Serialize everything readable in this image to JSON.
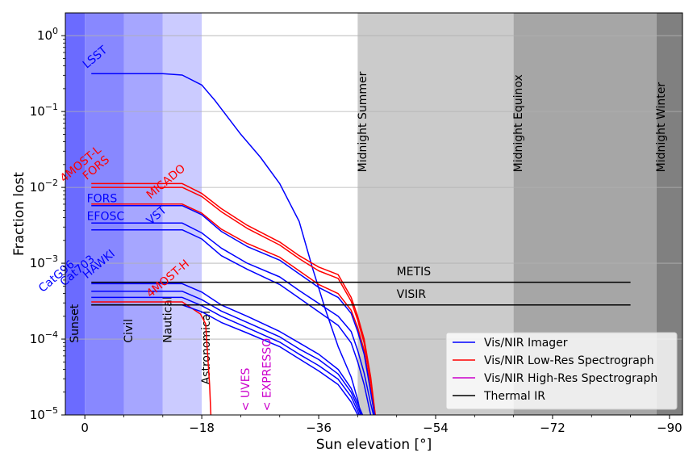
{
  "chart_data": {
    "type": "line",
    "title": "",
    "xlabel": "Sun elevation [°]",
    "ylabel": "Fraction lost",
    "x_ticks": [
      {
        "value": 0,
        "label": "0"
      },
      {
        "value": -18,
        "label": "−18"
      },
      {
        "value": -36,
        "label": "−36"
      },
      {
        "value": -54,
        "label": "−54"
      },
      {
        "value": -72,
        "label": "−72"
      },
      {
        "value": -90,
        "label": "−90"
      }
    ],
    "y_ticks": [
      {
        "exp": 0,
        "base": "10",
        "sup": "0"
      },
      {
        "exp": -1,
        "base": "10",
        "sup": "−1"
      },
      {
        "exp": -2,
        "base": "10",
        "sup": "−2"
      },
      {
        "exp": -3,
        "base": "10",
        "sup": "−3"
      },
      {
        "exp": -4,
        "base": "10",
        "sup": "−4"
      },
      {
        "exp": -5,
        "base": "10",
        "sup": "−5"
      }
    ],
    "xlim": [
      3,
      -92
    ],
    "ylim_log10": [
      -5,
      0.3
    ],
    "grid": "horizontal",
    "bands": [
      {
        "name": "sunset-band",
        "x0": 3,
        "x1": 0,
        "color": "#6b6bff"
      },
      {
        "name": "civil-band",
        "x0": 0,
        "x1": -6,
        "color": "#8888ff"
      },
      {
        "name": "nautical-band",
        "x0": -6,
        "x1": -12,
        "color": "#a6a6ff"
      },
      {
        "name": "astronomical-band",
        "x0": -12,
        "x1": -18,
        "color": "#cbcbff"
      },
      {
        "name": "midnight-summer-band",
        "x0": -42,
        "x1": -66,
        "color": "#cbcbcb"
      },
      {
        "name": "midnight-equinox-band",
        "x0": -66,
        "x1": -88,
        "color": "#a6a6a6"
      },
      {
        "name": "midnight-winter-band",
        "x0": -88,
        "x1": -92,
        "color": "#808080"
      }
    ],
    "band_labels": [
      {
        "text": "Sunset",
        "x": 1.0,
        "log": -4.05
      },
      {
        "text": "Civil",
        "x": -7.3,
        "log": -4.05
      },
      {
        "text": "Nautical",
        "x": -13.3,
        "log": -4.05
      },
      {
        "text": "Astronomical",
        "x": -19.2,
        "log": -4.6
      }
    ],
    "midnight_labels": [
      {
        "text": "Midnight Summer",
        "x": -43.3,
        "log": -1.8
      },
      {
        "text": "Midnight Equinox",
        "x": -67.3,
        "log": -1.8
      },
      {
        "text": "Midnight Winter",
        "x": -89.3,
        "log": -1.8
      }
    ],
    "series": [
      {
        "name": "LSST",
        "category": "imager",
        "color": "#0000ff",
        "x": [
          -1,
          -12,
          -15,
          -18,
          -20,
          -24,
          -27,
          -30,
          -33,
          -35,
          -37,
          -39,
          -41,
          -42,
          -43,
          -44
        ],
        "log": [
          -0.5,
          -0.5,
          -0.52,
          -0.65,
          -0.85,
          -1.3,
          -1.6,
          -1.95,
          -2.45,
          -3.05,
          -3.6,
          -4.1,
          -4.5,
          -4.8,
          -5.2,
          -5.7
        ]
      },
      {
        "name": "FORS",
        "category": "low-res",
        "color": "#ff0000",
        "x": [
          -1,
          -15,
          -18,
          -21,
          -25,
          -30,
          -33,
          -36,
          -39,
          -41,
          -42,
          -43,
          -44,
          -45
        ],
        "log": [
          -1.95,
          -1.95,
          -2.08,
          -2.28,
          -2.5,
          -2.72,
          -2.9,
          -3.05,
          -3.15,
          -3.45,
          -3.7,
          -4.0,
          -4.5,
          -5.2
        ]
      },
      {
        "name": "4MOST-L",
        "category": "low-res",
        "color": "#ff0000",
        "x": [
          -1,
          -15,
          -18,
          -21,
          -25,
          -30,
          -33,
          -36,
          -39,
          -41,
          -42,
          -43,
          -44,
          -45
        ],
        "log": [
          -2.0,
          -2.0,
          -2.12,
          -2.32,
          -2.54,
          -2.76,
          -2.94,
          -3.1,
          -3.2,
          -3.5,
          -3.75,
          -4.05,
          -4.55,
          -5.2
        ]
      },
      {
        "name": "MICADO",
        "category": "low-res",
        "color": "#ff0000",
        "x": [
          -1,
          -15,
          -18,
          -21,
          -25,
          -30,
          -33,
          -36,
          -39,
          -41,
          -42,
          -43,
          -44,
          -45
        ],
        "log": [
          -2.22,
          -2.22,
          -2.34,
          -2.55,
          -2.74,
          -2.92,
          -3.1,
          -3.28,
          -3.4,
          -3.62,
          -3.85,
          -4.15,
          -4.65,
          -5.2
        ]
      },
      {
        "name": "FORS",
        "category": "imager",
        "color": "#0000ff",
        "x": [
          -1,
          -15,
          -18,
          -21,
          -25,
          -30,
          -33,
          -36,
          -39,
          -41,
          -42,
          -43,
          -44,
          -45
        ],
        "log": [
          -2.24,
          -2.24,
          -2.36,
          -2.58,
          -2.78,
          -2.96,
          -3.14,
          -3.32,
          -3.45,
          -3.66,
          -3.9,
          -4.2,
          -4.7,
          -5.2
        ]
      },
      {
        "name": "EFOSC",
        "category": "imager",
        "color": "#0000ff",
        "x": [
          -1,
          -15,
          -18,
          -21,
          -25,
          -30,
          -33,
          -36,
          -39,
          -41,
          -42,
          -43,
          -44,
          -45
        ],
        "log": [
          -2.47,
          -2.47,
          -2.6,
          -2.8,
          -3.0,
          -3.18,
          -3.36,
          -3.53,
          -3.7,
          -3.9,
          -4.15,
          -4.45,
          -4.85,
          -5.2
        ]
      },
      {
        "name": "VST",
        "category": "imager",
        "color": "#0000ff",
        "x": [
          -1,
          -15,
          -18,
          -21,
          -25,
          -30,
          -33,
          -36,
          -39,
          -41,
          -42,
          -43,
          -44,
          -45
        ],
        "log": [
          -2.56,
          -2.56,
          -2.68,
          -2.9,
          -3.08,
          -3.28,
          -3.46,
          -3.64,
          -3.82,
          -4.05,
          -4.3,
          -4.6,
          -5.0,
          -5.2
        ]
      },
      {
        "name": "HAWKI",
        "category": "imager",
        "color": "#0000ff",
        "x": [
          -1,
          -15,
          -18,
          -21,
          -25,
          -30,
          -33,
          -36,
          -39,
          -41,
          -42,
          -43,
          -44
        ],
        "log": [
          -3.27,
          -3.27,
          -3.38,
          -3.55,
          -3.7,
          -3.9,
          -4.05,
          -4.2,
          -4.4,
          -4.65,
          -4.85,
          -5.05,
          -5.2
        ]
      },
      {
        "name": "Cat703",
        "category": "imager",
        "color": "#0000ff",
        "x": [
          -1,
          -15,
          -18,
          -21,
          -25,
          -30,
          -33,
          -36,
          -39,
          -41,
          -42,
          -43,
          -44
        ],
        "log": [
          -3.37,
          -3.37,
          -3.48,
          -3.63,
          -3.78,
          -3.97,
          -4.13,
          -4.27,
          -4.46,
          -4.7,
          -4.9,
          -5.1,
          -5.2
        ]
      },
      {
        "name": "CatG96",
        "category": "imager",
        "color": "#0000ff",
        "x": [
          -1,
          -15,
          -18,
          -21,
          -25,
          -30,
          -33,
          -36,
          -39,
          -41,
          -42,
          -43,
          -44
        ],
        "log": [
          -3.45,
          -3.45,
          -3.56,
          -3.7,
          -3.85,
          -4.04,
          -4.2,
          -4.35,
          -4.53,
          -4.76,
          -4.95,
          -5.15,
          -5.2
        ]
      },
      {
        "name": "4MOST-H",
        "category": "low-res",
        "color": "#ff0000",
        "x": [
          -1,
          -15,
          -17.8,
          -18.6,
          -19.2,
          -19.5
        ],
        "log": [
          -3.51,
          -3.51,
          -3.67,
          -3.8,
          -4.6,
          -5.2
        ]
      },
      {
        "name": "4MOST-H",
        "category": "imager",
        "color": "#0000ff",
        "x": [
          -1,
          -15,
          -18,
          -21,
          -25,
          -30,
          -33,
          -36,
          -39,
          -41,
          -42,
          -43,
          -44
        ],
        "log": [
          -3.55,
          -3.55,
          -3.64,
          -3.78,
          -3.92,
          -4.1,
          -4.26,
          -4.42,
          -4.6,
          -4.83,
          -5.0,
          -5.18,
          -5.2
        ]
      },
      {
        "name": "METIS",
        "category": "thermal",
        "color": "#000000",
        "x": [
          -1,
          -84
        ],
        "log": [
          -3.25,
          -3.25
        ]
      },
      {
        "name": "VISIR",
        "category": "thermal",
        "color": "#000000",
        "x": [
          -1,
          -84
        ],
        "log": [
          -3.55,
          -3.55
        ]
      }
    ],
    "series_labels": [
      {
        "text": "LSST",
        "color": "#0000ff",
        "x": -0.3,
        "log": -0.48,
        "rotate": -40
      },
      {
        "text": "FORS",
        "color": "#ff0000",
        "x": -0.3,
        "log": -1.95,
        "rotate": -40
      },
      {
        "text": "4MOST-L",
        "color": "#ff0000",
        "x": 3.2,
        "log": -1.98,
        "rotate": -40
      },
      {
        "text": "FORS",
        "color": "#0000ff",
        "x": -0.3,
        "log": -2.24,
        "rotate": 0
      },
      {
        "text": "MICADO",
        "color": "#ff0000",
        "x": -10.1,
        "log": -2.2,
        "rotate": -40
      },
      {
        "text": "EFOSC",
        "color": "#0000ff",
        "x": -0.3,
        "log": -2.47,
        "rotate": 0
      },
      {
        "text": "VST",
        "color": "#0000ff",
        "x": -10.1,
        "log": -2.54,
        "rotate": -40
      },
      {
        "text": "HAWKI",
        "color": "#0000ff",
        "x": -0.3,
        "log": -3.25,
        "rotate": -40
      },
      {
        "text": "Cat703",
        "color": "#0000ff",
        "x": 3.2,
        "log": -3.35,
        "rotate": -40
      },
      {
        "text": "CatG96",
        "color": "#0000ff",
        "x": 6.5,
        "log": -3.43,
        "rotate": -40
      },
      {
        "text": "4MOST-H",
        "color": "#ff0000",
        "x": -10.1,
        "log": -3.5,
        "rotate": -40
      },
      {
        "text": "METIS",
        "color": "#000000",
        "x": -48.0,
        "log": -3.2,
        "rotate": 0
      },
      {
        "text": "VISIR",
        "color": "#000000",
        "x": -48.0,
        "log": -3.5,
        "rotate": 0
      }
    ],
    "high_res_markers": [
      {
        "text": "<  UVES",
        "color": "#cc00cc",
        "x": -25.3,
        "log": -4.95
      },
      {
        "text": "<  EXPRESSO",
        "color": "#cc00cc",
        "x": -28.6,
        "log": -4.95
      }
    ],
    "legend": {
      "position": "lower-right",
      "entries": [
        {
          "label": "Vis/NIR Imager",
          "color": "#0000ff"
        },
        {
          "label": "Vis/NIR Low-Res Spectrograph",
          "color": "#ff0000"
        },
        {
          "label": "Vis/NIR High-Res Spectrograph",
          "color": "#cc00cc"
        },
        {
          "label": "Thermal IR",
          "color": "#000000"
        }
      ]
    }
  }
}
